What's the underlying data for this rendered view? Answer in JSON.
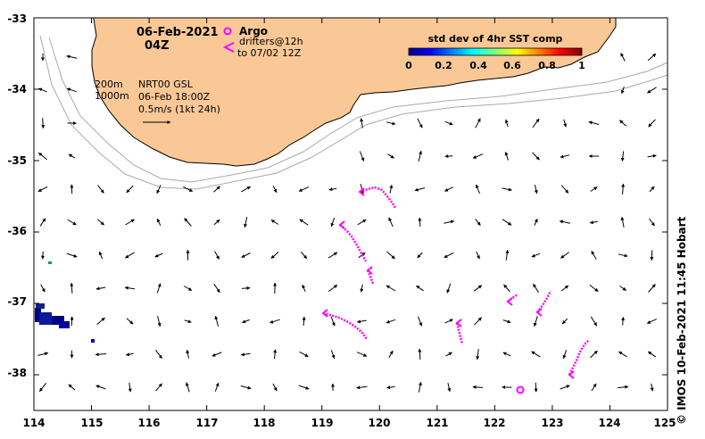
{
  "map": {
    "date": "06-Feb-2021",
    "time": "04Z",
    "legend": {
      "argo_label": "Argo",
      "drifters_label_1": "drifters@12h",
      "drifters_label_2": "to 07/02 12Z",
      "argo_color": "#ff00ff",
      "drifter_color": "#ff00ff"
    },
    "isobaths": {
      "label_200": "200m",
      "label_1000": "1000m",
      "color": "#aaaaaa"
    },
    "model": {
      "line1": "NRT00 GSL",
      "line2": "06-Feb 18:00Z",
      "line3": "0.5m/s (1kt 24h)"
    },
    "colorbar": {
      "title": "std dev of 4hr SST comp",
      "ticks": [
        "0",
        "0.2",
        "0.4",
        "0.6",
        "0.8",
        "1"
      ]
    },
    "land_color": "#f9c896",
    "credit": "© IMOS 10-Feb-2021 11:45 Hobart",
    "x_ticks": [
      "114",
      "115",
      "116",
      "117",
      "118",
      "119",
      "120",
      "121",
      "122",
      "123",
      "124",
      "125"
    ],
    "y_ticks": [
      "-33",
      "-34",
      "-35",
      "-36",
      "-37",
      "-38"
    ],
    "lon_range": [
      114,
      125
    ],
    "lat_range": [
      -38.5,
      -33
    ]
  }
}
